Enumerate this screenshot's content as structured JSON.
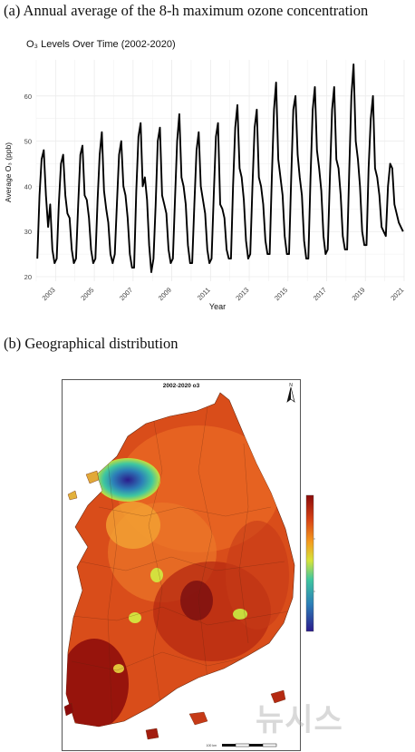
{
  "panel_a": {
    "caption": "(a) Annual average of the 8-h maximum ozone concentration"
  },
  "panel_b": {
    "caption": "(b) Geographical distribution",
    "map_title": "2002-2020 o3",
    "north_label": "N",
    "scale_label": "100 km"
  },
  "colors": {
    "line": "#000000",
    "grid": "#ebebeb",
    "high": "#8b0a0a",
    "low": "#2b1b8c"
  },
  "watermark": "뉴시스",
  "chart_data": {
    "type": "line",
    "title": "O₃  Levels Over Time (2002-2020)",
    "xlabel": "Year",
    "ylabel": "Average O₃  (ppb)",
    "xlim": [
      2002.0,
      2021.0
    ],
    "ylim": [
      19,
      68
    ],
    "y_ticks": [
      20,
      30,
      40,
      50,
      60
    ],
    "x_ticks": [
      "2003",
      "2005",
      "2007",
      "2009",
      "2011",
      "2013",
      "2015",
      "2017",
      "2019",
      "2021"
    ],
    "grid": true,
    "series": [
      {
        "values_by_year": [
          [
            24,
            38,
            46,
            48,
            38,
            31,
            36,
            26,
            23
          ],
          [
            24,
            36,
            45,
            47,
            38,
            34,
            33,
            26,
            23
          ],
          [
            24,
            36,
            47,
            49,
            38,
            37,
            33,
            26,
            23
          ],
          [
            24,
            37,
            47,
            52,
            39,
            35,
            32,
            25,
            23
          ],
          [
            25,
            36,
            47,
            50,
            40,
            38,
            33,
            25,
            22
          ],
          [
            22,
            39,
            51,
            54,
            40,
            42,
            37,
            27,
            21
          ],
          [
            24,
            36,
            50,
            53,
            38,
            36,
            34,
            26,
            23
          ],
          [
            24,
            37,
            50,
            56,
            42,
            40,
            36,
            27,
            23
          ],
          [
            23,
            36,
            48,
            52,
            40,
            37,
            34,
            26,
            23
          ],
          [
            24,
            38,
            51,
            54,
            36,
            35,
            33,
            26,
            24
          ],
          [
            24,
            40,
            53,
            58,
            44,
            42,
            37,
            28,
            24
          ],
          [
            25,
            40,
            53,
            57,
            42,
            40,
            36,
            28,
            25
          ],
          [
            25,
            42,
            57,
            63,
            46,
            42,
            38,
            29,
            25
          ],
          [
            25,
            42,
            57,
            60,
            47,
            42,
            38,
            28,
            24
          ],
          [
            24,
            42,
            57,
            62,
            48,
            44,
            39,
            29,
            25
          ],
          [
            26,
            42,
            57,
            62,
            46,
            44,
            38,
            29,
            26
          ],
          [
            26,
            44,
            60,
            67,
            50,
            46,
            40,
            30,
            27
          ],
          [
            27,
            44,
            55,
            60,
            44,
            42,
            38,
            31,
            30
          ],
          [
            29,
            40,
            45,
            44,
            36,
            34,
            32,
            31,
            30
          ]
        ]
      }
    ]
  }
}
